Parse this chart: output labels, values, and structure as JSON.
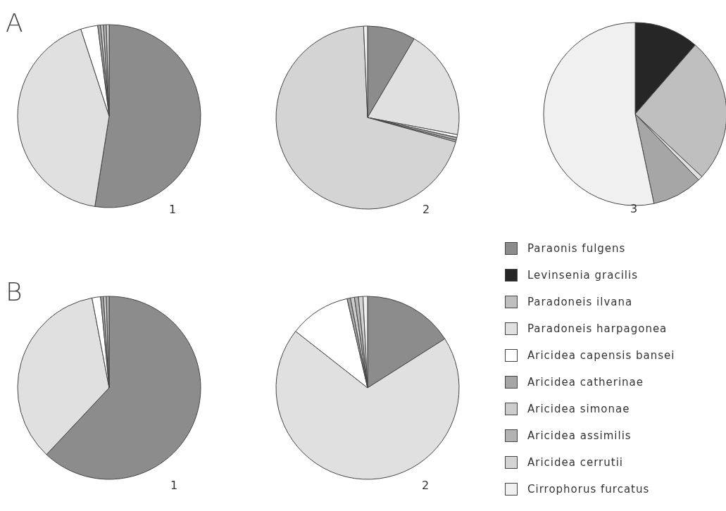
{
  "chart_data": {
    "type": "pie",
    "legend": "right",
    "annotations": [
      "A",
      "B"
    ],
    "categories": [
      "Paraonis fulgens",
      "Levinsenia gracilis",
      "Paradoneis ilvana",
      "Paradoneis harpagonea",
      "Aricidea capensis bansei",
      "Aricidea catherinae",
      "Aricidea simonae",
      "Aricidea assimilis",
      "Aricidea cerrutii",
      "Cirrophorus furcatus"
    ],
    "colors": [
      "#8c8c8c",
      "#262626",
      "#bfbfbf",
      "#e0e0e0",
      "#ffffff",
      "#a6a6a6",
      "#cccccc",
      "#b3b3b3",
      "#d4d4d4",
      "#f0f0f0"
    ],
    "series": [
      {
        "name": "1",
        "values": [
          52.5,
          0,
          0,
          42.5,
          3,
          0.5,
          0.5,
          0.5,
          0.5,
          0
        ]
      },
      {
        "name": "2",
        "values": [
          8.5,
          0,
          0,
          19.5,
          0.5,
          0.5,
          0.3,
          0,
          70,
          0.7
        ]
      },
      {
        "name": "3",
        "values": [
          0,
          11.4,
          25.6,
          0.8,
          0,
          8.9,
          0,
          0,
          0,
          53.3
        ]
      },
      {
        "name": "1",
        "values": [
          62,
          0,
          0,
          35,
          1.5,
          0.5,
          0.5,
          0.5,
          0,
          0
        ]
      },
      {
        "name": "2",
        "values": [
          16,
          0,
          0,
          69.6,
          10.8,
          0.6,
          0.7,
          0.7,
          0.8,
          0.8
        ]
      }
    ]
  }
}
